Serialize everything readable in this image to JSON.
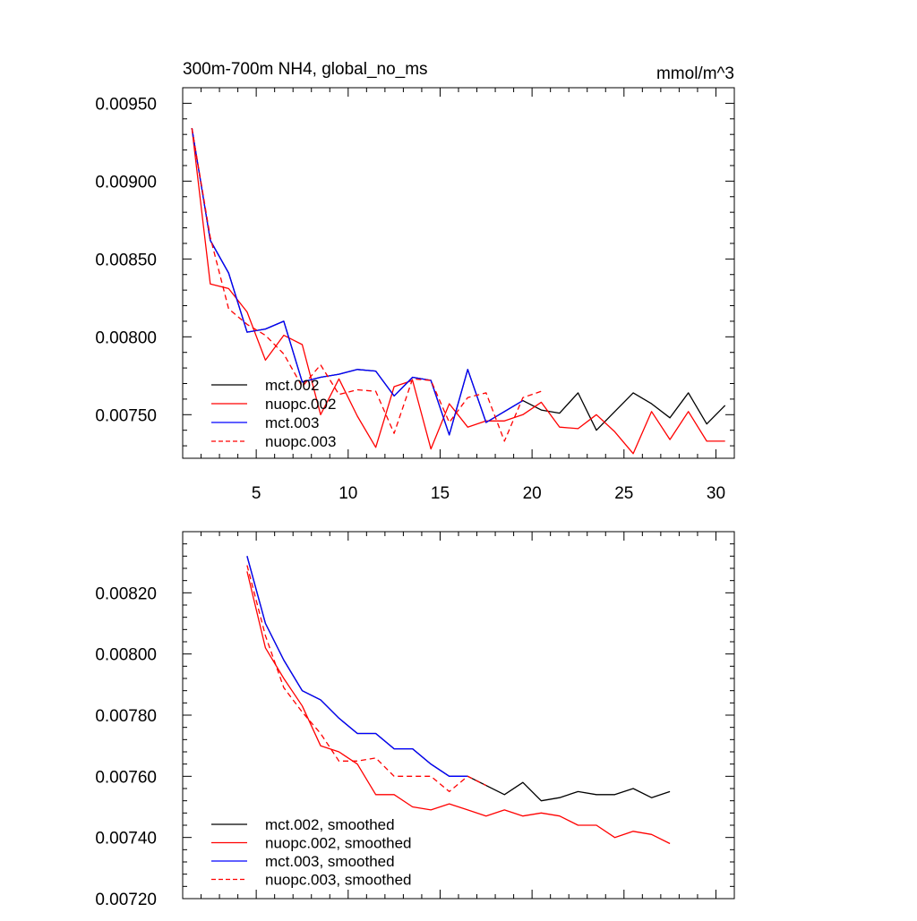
{
  "chart_data": [
    {
      "type": "line",
      "title": "300m-700m NH4, global_no_ms",
      "units": "mmol/m^3",
      "xlim": [
        1,
        31
      ],
      "ylim": [
        0.00722,
        0.0096
      ],
      "xticks": [
        5,
        10,
        15,
        20,
        25,
        30
      ],
      "xtick_labels": [
        "5",
        "10",
        "15",
        "20",
        "25",
        "30"
      ],
      "yticks": [
        0.0075,
        0.008,
        0.0085,
        0.009,
        0.0095
      ],
      "ytick_labels": [
        "0.00750",
        "0.00800",
        "0.00850",
        "0.00900",
        "0.00950"
      ],
      "legend": "bottom-left",
      "series": [
        {
          "name": "mct.002",
          "color": "#000000",
          "dash": "solid",
          "x": [
            1.5,
            2.5,
            3.5,
            4.5,
            5.5,
            6.5,
            7.5,
            8.5,
            9.5,
            10.5,
            11.5,
            12.5,
            13.5,
            14.5,
            15.5,
            16.5,
            17.5,
            18.5,
            19.5,
            20.5,
            21.5,
            22.5,
            23.5,
            24.5,
            25.5,
            26.5,
            27.5,
            28.5,
            29.5,
            30.5
          ],
          "y": [
            0.00934,
            0.00862,
            0.00841,
            0.00803,
            0.00805,
            0.0081,
            0.00771,
            0.00774,
            0.00776,
            0.00779,
            0.00778,
            0.00762,
            0.00774,
            0.00772,
            0.00737,
            0.00779,
            0.00745,
            0.00752,
            0.00759,
            0.00753,
            0.00751,
            0.00764,
            0.0074,
            0.00752,
            0.00764,
            0.00757,
            0.00748,
            0.00764,
            0.00744,
            0.00756
          ]
        },
        {
          "name": "nuopc.002",
          "color": "#ff0000",
          "dash": "solid",
          "x": [
            1.5,
            2.5,
            3.5,
            4.5,
            5.5,
            6.5,
            7.5,
            8.5,
            9.5,
            10.5,
            11.5,
            12.5,
            13.5,
            14.5,
            15.5,
            16.5,
            17.5,
            18.5,
            19.5,
            20.5,
            21.5,
            22.5,
            23.5,
            24.5,
            25.5,
            26.5,
            27.5,
            28.5,
            29.5,
            30.5
          ],
          "y": [
            0.00934,
            0.00834,
            0.00831,
            0.00816,
            0.00785,
            0.00801,
            0.00795,
            0.0075,
            0.00773,
            0.00749,
            0.00729,
            0.00768,
            0.00772,
            0.00728,
            0.00757,
            0.00742,
            0.00746,
            0.00746,
            0.0075,
            0.00758,
            0.00742,
            0.00741,
            0.0075,
            0.00739,
            0.00725,
            0.00752,
            0.00734,
            0.00752,
            0.00733,
            0.00733
          ]
        },
        {
          "name": "mct.003",
          "color": "#0000ff",
          "dash": "solid",
          "x": [
            1.5,
            2.5,
            3.5,
            4.5,
            5.5,
            6.5,
            7.5,
            8.5,
            9.5,
            10.5,
            11.5,
            12.5,
            13.5,
            14.5,
            15.5,
            16.5,
            17.5,
            18.5,
            19.5
          ],
          "y": [
            0.00934,
            0.00862,
            0.00841,
            0.00803,
            0.00805,
            0.0081,
            0.00771,
            0.00774,
            0.00776,
            0.00779,
            0.00778,
            0.00762,
            0.00774,
            0.00772,
            0.00737,
            0.00779,
            0.00745,
            0.00752,
            0.00759
          ]
        },
        {
          "name": "nuopc.003",
          "color": "#ff0000",
          "dash": "dashed",
          "x": [
            1.5,
            2.5,
            3.5,
            4.5,
            5.5,
            6.5,
            7.5,
            8.5,
            9.5,
            10.5,
            11.5,
            12.5,
            13.5,
            14.5,
            15.5,
            16.5,
            17.5,
            18.5,
            19.5,
            20.5
          ],
          "y": [
            0.00934,
            0.00864,
            0.00818,
            0.00808,
            0.00801,
            0.00789,
            0.00768,
            0.00782,
            0.00763,
            0.00766,
            0.00765,
            0.00738,
            0.00773,
            0.00772,
            0.00745,
            0.00761,
            0.00764,
            0.00733,
            0.00761,
            0.00765
          ]
        }
      ]
    },
    {
      "type": "line",
      "title": "",
      "xlim": [
        1,
        31
      ],
      "ylim": [
        0.0072,
        0.0084
      ],
      "xticks": [
        5,
        10,
        15,
        20,
        25,
        30
      ],
      "yticks": [
        0.0072,
        0.0074,
        0.0076,
        0.0078,
        0.008,
        0.0082
      ],
      "ytick_labels": [
        "0.00720",
        "0.00740",
        "0.00760",
        "0.00780",
        "0.00800",
        "0.00820"
      ],
      "legend": "bottom-left",
      "series": [
        {
          "name": "mct.002, smoothed",
          "color": "#000000",
          "dash": "solid",
          "x": [
            4.5,
            5.5,
            6.5,
            7.5,
            8.5,
            9.5,
            10.5,
            11.5,
            12.5,
            13.5,
            14.5,
            15.5,
            16.5,
            17.5,
            18.5,
            19.5,
            20.5,
            21.5,
            22.5,
            23.5,
            24.5,
            25.5,
            26.5,
            27.5
          ],
          "y": [
            0.00832,
            0.0081,
            0.00798,
            0.00788,
            0.00785,
            0.00779,
            0.00774,
            0.00774,
            0.00769,
            0.00769,
            0.00764,
            0.0076,
            0.0076,
            0.00757,
            0.00754,
            0.00758,
            0.00752,
            0.00753,
            0.00755,
            0.00754,
            0.00754,
            0.00756,
            0.00753,
            0.00755
          ]
        },
        {
          "name": "nuopc.002, smoothed",
          "color": "#ff0000",
          "dash": "solid",
          "x": [
            4.5,
            5.5,
            6.5,
            7.5,
            8.5,
            9.5,
            10.5,
            11.5,
            12.5,
            13.5,
            14.5,
            15.5,
            16.5,
            17.5,
            18.5,
            19.5,
            20.5,
            21.5,
            22.5,
            23.5,
            24.5,
            25.5,
            26.5,
            27.5
          ],
          "y": [
            0.00827,
            0.00802,
            0.00792,
            0.00783,
            0.0077,
            0.00768,
            0.00764,
            0.00754,
            0.00754,
            0.0075,
            0.00749,
            0.00751,
            0.00749,
            0.00747,
            0.00749,
            0.00747,
            0.00748,
            0.00747,
            0.00744,
            0.00744,
            0.0074,
            0.00742,
            0.00741,
            0.00738
          ]
        },
        {
          "name": "mct.003, smoothed",
          "color": "#0000ff",
          "dash": "solid",
          "x": [
            4.5,
            5.5,
            6.5,
            7.5,
            8.5,
            9.5,
            10.5,
            11.5,
            12.5,
            13.5,
            14.5,
            15.5,
            16.5
          ],
          "y": [
            0.00832,
            0.0081,
            0.00798,
            0.00788,
            0.00785,
            0.00779,
            0.00774,
            0.00774,
            0.00769,
            0.00769,
            0.00764,
            0.0076,
            0.0076
          ]
        },
        {
          "name": "nuopc.003, smoothed",
          "color": "#ff0000",
          "dash": "dashed",
          "x": [
            4.5,
            5.5,
            6.5,
            7.5,
            8.5,
            9.5,
            10.5,
            11.5,
            12.5,
            13.5,
            14.5,
            15.5,
            16.5,
            17.5
          ],
          "y": [
            0.00829,
            0.00806,
            0.00789,
            0.00781,
            0.00774,
            0.00765,
            0.00765,
            0.00766,
            0.0076,
            0.0076,
            0.0076,
            0.00755,
            0.0076,
            0.00757
          ]
        }
      ]
    }
  ]
}
